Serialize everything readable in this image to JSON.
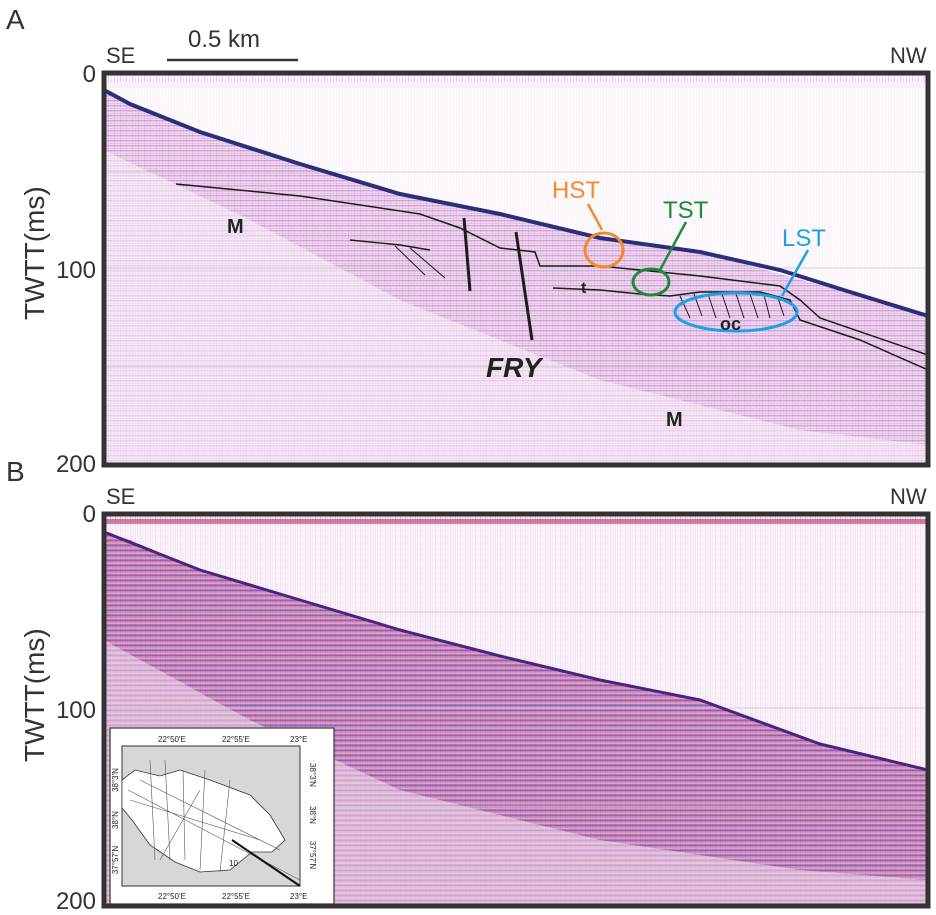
{
  "panel_a": {
    "letter": "A",
    "left_dir": "SE",
    "right_dir": "NW",
    "scale_label": "0.5 km",
    "y_axis_title": "TWTT(ms)",
    "y_ticks": [
      "0",
      "100",
      "200"
    ],
    "labels": {
      "m_upper": "M",
      "m_lower": "M",
      "fry": "FRY",
      "t": "t",
      "oc": "oc",
      "hst": "HST",
      "tst": "TST",
      "lst": "LST"
    },
    "colors": {
      "hst": "#f28a2e",
      "tst": "#1e8a3a",
      "lst": "#1aa3e0",
      "seafloor": "#2a2f7a",
      "seismic": "#9a3fa5"
    }
  },
  "panel_b": {
    "letter": "B",
    "left_dir": "SE",
    "right_dir": "NW",
    "y_axis_title": "TWTT(ms)",
    "y_ticks": [
      "0",
      "100",
      "200"
    ]
  },
  "inset_map": {
    "top_labels": [
      "22°50'E",
      "22°55'E",
      "23°E"
    ],
    "bottom_labels": [
      "22°50'E",
      "22°55'E",
      "23°E"
    ],
    "left_labels": [
      "38°3'N",
      "38°N",
      "37°57'N"
    ],
    "right_labels": [
      "38°3'N",
      "38°N",
      "37°57'N"
    ],
    "line_label": "10"
  }
}
